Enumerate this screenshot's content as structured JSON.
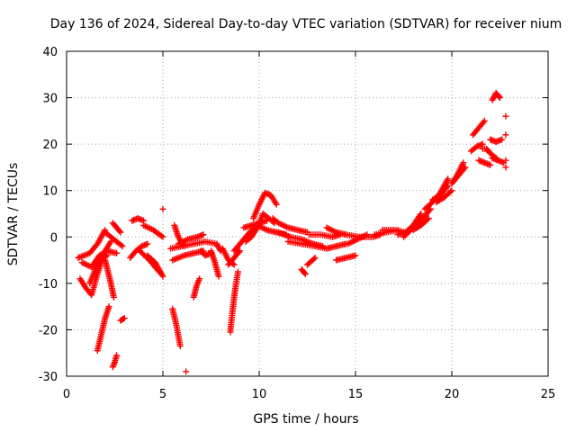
{
  "chart_data": {
    "type": "scatter",
    "title": "Day 136 of 2024, Sidereal Day-to-day VTEC variation (SDTVAR) for receiver nium",
    "xlabel": "GPS time / hours",
    "ylabel": "SDTVAR / TECUs",
    "xlim": [
      0,
      25
    ],
    "ylim": [
      -30,
      40
    ],
    "xticks": [
      "0",
      "5",
      "10",
      "15",
      "20",
      "25"
    ],
    "yticks": [
      "-30",
      "-20",
      "-10",
      "0",
      "10",
      "20",
      "30",
      "40"
    ],
    "grid": true,
    "marker": "plus",
    "color": "#ff0000",
    "segments": [
      {
        "x": [
          0.6,
          1.2,
          1.6,
          2.0
        ],
        "y": [
          -4.5,
          -3.5,
          -1.5,
          1.5
        ]
      },
      {
        "x": [
          0.7,
          1.0,
          1.3,
          1.6,
          2.0,
          2.3
        ],
        "y": [
          -9,
          -11,
          -12.5,
          -8,
          -3,
          -1
        ]
      },
      {
        "x": [
          0.8,
          1.3,
          1.7,
          2.1,
          2.6
        ],
        "y": [
          -5.5,
          -6.5,
          -4,
          -3,
          -3.5
        ]
      },
      {
        "x": [
          1.2,
          1.5,
          1.8,
          2.1
        ],
        "y": [
          -10,
          -7,
          -5,
          -4
        ]
      },
      {
        "x": [
          1.6,
          1.8,
          2.0,
          2.2
        ],
        "y": [
          -24.5,
          -21,
          -17.5,
          -15
        ]
      },
      {
        "x": [
          2.0,
          2.15,
          2.3,
          2.45
        ],
        "y": [
          -5,
          -7.5,
          -10,
          -13
        ]
      },
      {
        "x": [
          2.0,
          2.3,
          2.6,
          2.9
        ],
        "y": [
          1,
          0,
          -1,
          -2
        ]
      },
      {
        "x": [
          2.4,
          2.5,
          2.6
        ],
        "y": [
          -28,
          -27,
          -25.5
        ]
      },
      {
        "x": [
          2.8,
          3.0
        ],
        "y": [
          -18,
          -17.5
        ]
      },
      {
        "x": [
          2.4,
          2.8
        ],
        "y": [
          3,
          1
        ]
      },
      {
        "x": [
          3.4,
          3.7,
          4.0
        ],
        "y": [
          3.5,
          4,
          3.5
        ]
      },
      {
        "x": [
          3.3,
          3.6,
          3.9,
          4.2
        ],
        "y": [
          -4.5,
          -3,
          -2,
          -1.5
        ]
      },
      {
        "x": [
          3.8,
          4.3,
          4.8
        ],
        "y": [
          -3,
          -5,
          -7.5
        ]
      },
      {
        "x": [
          4.2,
          4.6,
          5.0
        ],
        "y": [
          -4,
          -5.5,
          -8.5
        ]
      },
      {
        "x": [
          4.0,
          4.5,
          5.0
        ],
        "y": [
          2.5,
          1.5,
          0
        ]
      },
      {
        "x": [
          5.0
        ],
        "y": [
          6
        ]
      },
      {
        "x": [
          5.4,
          6.0,
          6.6,
          7.2,
          7.8,
          8.0
        ],
        "y": [
          -2.5,
          -2,
          -1.5,
          -1,
          -1.5,
          -3
        ]
      },
      {
        "x": [
          5.5,
          6.1,
          6.6,
          7.1
        ],
        "y": [
          -5,
          -4,
          -3.5,
          -3
        ]
      },
      {
        "x": [
          5.6,
          5.8,
          6.1
        ],
        "y": [
          2.5,
          0,
          -2
        ]
      },
      {
        "x": [
          5.8,
          6.3,
          6.8,
          7.1
        ],
        "y": [
          -1.5,
          -0.5,
          0,
          0.5
        ]
      },
      {
        "x": [
          5.5,
          5.7,
          5.9
        ],
        "y": [
          -15.5,
          -19,
          -23.5
        ]
      },
      {
        "x": [
          6.2
        ],
        "y": [
          -29
        ]
      },
      {
        "x": [
          6.6,
          6.75,
          6.9
        ],
        "y": [
          -13,
          -10.5,
          -9
        ]
      },
      {
        "x": [
          7.0,
          7.2,
          7.5
        ],
        "y": [
          -3,
          -4,
          -3.5
        ]
      },
      {
        "x": [
          7.5,
          7.7,
          7.9
        ],
        "y": [
          -3,
          -5.5,
          -8.5
        ]
      },
      {
        "x": [
          8.1,
          8.4,
          8.7
        ],
        "y": [
          -2.5,
          -5,
          -6
        ]
      },
      {
        "x": [
          8.4,
          8.7,
          9.0
        ],
        "y": [
          -6,
          -4.5,
          -3
        ]
      },
      {
        "x": [
          8.5,
          8.6,
          8.7,
          8.8,
          8.9
        ],
        "y": [
          -20.5,
          -16.5,
          -13,
          -10,
          -7.5
        ]
      },
      {
        "x": [
          8.7,
          9.1,
          9.5,
          9.9,
          10.4,
          10.9,
          11.4
        ],
        "y": [
          -3,
          -1,
          1,
          2.5,
          1.5,
          1,
          0.5
        ]
      },
      {
        "x": [
          9.3,
          9.6,
          9.9,
          10.2,
          10.5,
          10.8
        ],
        "y": [
          -1,
          0,
          2,
          5,
          4,
          3
        ]
      },
      {
        "x": [
          9.7,
          10.0,
          10.3,
          10.6,
          10.9
        ],
        "y": [
          4,
          7,
          9.5,
          9,
          7
        ]
      },
      {
        "x": [
          9.2,
          9.6,
          10.0,
          10.4
        ],
        "y": [
          2,
          2.5,
          3,
          3.5
        ]
      },
      {
        "x": [
          10.7,
          11.0,
          11.5,
          12.0,
          12.5
        ],
        "y": [
          4,
          3,
          2,
          1.5,
          1
        ]
      },
      {
        "x": [
          11.0,
          11.6,
          12.2,
          12.8,
          13.3
        ],
        "y": [
          1,
          0,
          -0.5,
          -1.5,
          -2
        ]
      },
      {
        "x": [
          11.5,
          12.2,
          12.9,
          13.5,
          14.0,
          14.5
        ],
        "y": [
          -1,
          -1.5,
          -2,
          -2.5,
          -2,
          -1.5
        ]
      },
      {
        "x": [
          12.6,
          13.2,
          13.8,
          14.2
        ],
        "y": [
          0.5,
          0.5,
          0,
          0.5
        ]
      },
      {
        "x": [
          12.2,
          12.4
        ],
        "y": [
          -7,
          -8
        ]
      },
      {
        "x": [
          12.5,
          12.9
        ],
        "y": [
          -6,
          -4.5
        ]
      },
      {
        "x": [
          13.5,
          14.0,
          14.5
        ],
        "y": [
          2,
          1,
          0.5
        ]
      },
      {
        "x": [
          14.0,
          14.5,
          15.0
        ],
        "y": [
          -5,
          -4.5,
          -4
        ]
      },
      {
        "x": [
          14.5,
          15.2,
          15.9,
          16.3
        ],
        "y": [
          0.5,
          0,
          0,
          0.5
        ]
      },
      {
        "x": [
          14.6,
          15.1,
          15.6
        ],
        "y": [
          -1.5,
          -0.5,
          0.5
        ]
      },
      {
        "x": [
          16.0,
          16.6,
          17.2
        ],
        "y": [
          0.5,
          1,
          1.5
        ]
      },
      {
        "x": [
          16.4,
          17.0,
          17.6
        ],
        "y": [
          1.5,
          1.5,
          1
        ]
      },
      {
        "x": [
          17.2,
          17.6,
          18.0,
          18.4
        ],
        "y": [
          0.5,
          1,
          2.5,
          5
        ]
      },
      {
        "x": [
          17.5,
          18.0,
          18.4,
          18.9
        ],
        "y": [
          0,
          2,
          3.5,
          6
        ]
      },
      {
        "x": [
          18.0,
          18.4,
          18.8
        ],
        "y": [
          1.5,
          2.5,
          4
        ]
      },
      {
        "x": [
          18.6,
          19.0,
          19.4,
          19.8
        ],
        "y": [
          6,
          7.5,
          9.5,
          12.5
        ]
      },
      {
        "x": [
          19.0,
          19.4,
          19.8
        ],
        "y": [
          8,
          9,
          11
        ]
      },
      {
        "x": [
          19.2,
          19.6,
          20.0
        ],
        "y": [
          7.5,
          8.5,
          10
        ]
      },
      {
        "x": [
          20.0,
          20.3,
          20.6
        ],
        "y": [
          11.5,
          13.5,
          16
        ]
      },
      {
        "x": [
          20.1,
          20.4,
          20.7
        ],
        "y": [
          12,
          13.5,
          15
        ]
      },
      {
        "x": [
          21.0,
          21.3,
          21.6
        ],
        "y": [
          18.5,
          19.5,
          20
        ]
      },
      {
        "x": [
          21.1,
          21.4,
          21.7
        ],
        "y": [
          22,
          23.5,
          25
        ]
      },
      {
        "x": [
          21.4,
          21.7,
          22.0
        ],
        "y": [
          16.5,
          16,
          15.5
        ]
      },
      {
        "x": [
          21.6,
          21.8,
          22.0,
          22.3
        ],
        "y": [
          19,
          19,
          18,
          17
        ]
      },
      {
        "x": [
          22.1,
          22.3,
          22.5
        ],
        "y": [
          29.5,
          31,
          30
        ]
      },
      {
        "x": [
          22.0,
          22.3,
          22.6
        ],
        "y": [
          21,
          20.5,
          21
        ]
      },
      {
        "x": [
          22.1,
          22.4,
          22.7
        ],
        "y": [
          17,
          16.5,
          16
        ]
      },
      {
        "x": [
          22.8
        ],
        "y": [
          26
        ]
      },
      {
        "x": [
          22.8
        ],
        "y": [
          22
        ]
      },
      {
        "x": [
          22.8
        ],
        "y": [
          16.5
        ]
      },
      {
        "x": [
          22.8
        ],
        "y": [
          15
        ]
      }
    ]
  }
}
